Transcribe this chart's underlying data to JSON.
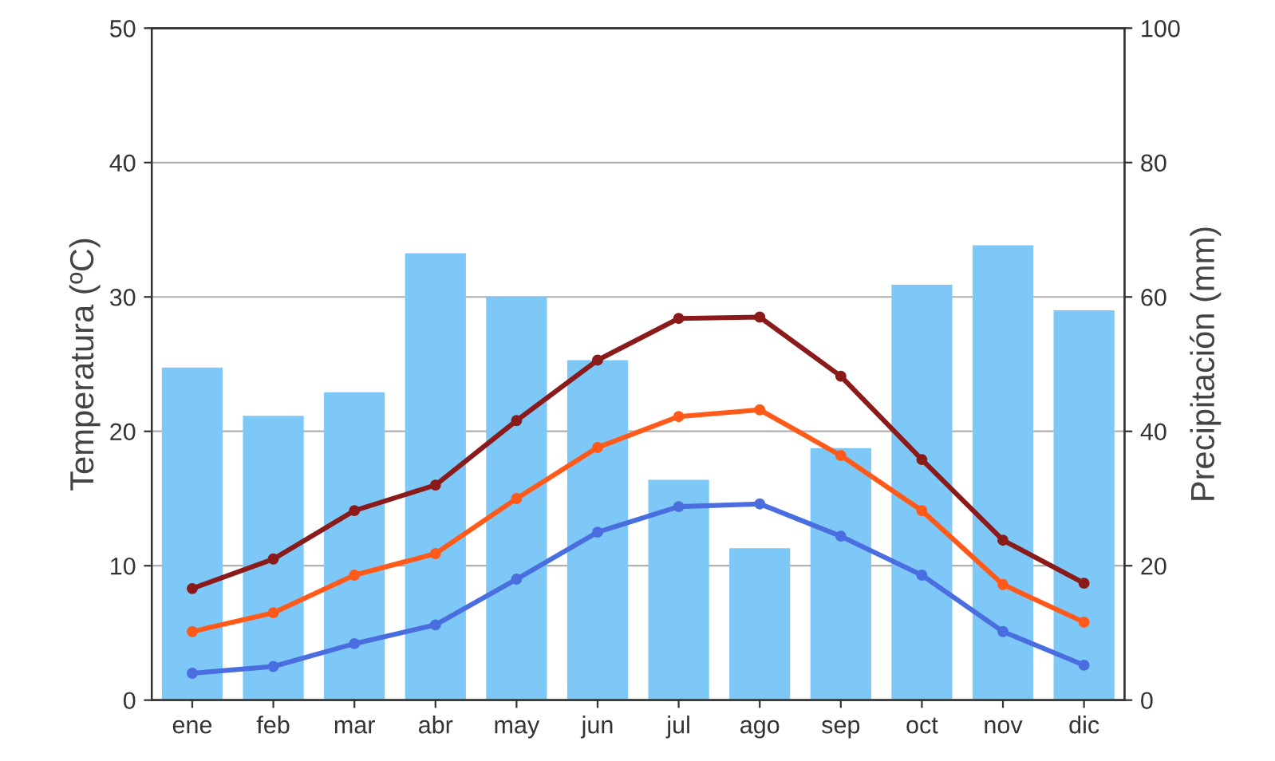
{
  "chart_data": {
    "type": "line",
    "categories": [
      "ene",
      "feb",
      "mar",
      "abr",
      "may",
      "jun",
      "jul",
      "ago",
      "sep",
      "oct",
      "nov",
      "dic"
    ],
    "ylabel": "Temperatura (ºC)",
    "y2label": "Precipitación (mm)",
    "ylim": [
      0,
      50
    ],
    "yticks": [
      0,
      10,
      20,
      30,
      40,
      50
    ],
    "y2lim": [
      0,
      100
    ],
    "y2ticks": [
      0,
      20,
      40,
      60,
      80,
      100
    ],
    "grid": "y",
    "marker": "circle",
    "line_style": "solid",
    "series": [
      {
        "type": "bar",
        "axis": "y2",
        "color": "#7ec8f7",
        "values": [
          49.5,
          42.3,
          45.8,
          66.5,
          60,
          50.6,
          32.8,
          22.6,
          37.5,
          61.8,
          67.7,
          58
        ]
      },
      {
        "color": "#8b1a1a",
        "values": [
          8.3,
          10.5,
          14.1,
          16.0,
          20.8,
          25.3,
          28.4,
          28.5,
          24.1,
          17.9,
          11.9,
          8.7
        ]
      },
      {
        "color": "#ff5a1a",
        "values": [
          5.1,
          6.5,
          9.3,
          10.9,
          15.0,
          18.8,
          21.1,
          21.6,
          18.2,
          14.1,
          8.6,
          5.8
        ]
      },
      {
        "color": "#4a6ee0",
        "values": [
          2.0,
          2.5,
          4.2,
          5.6,
          9.0,
          12.5,
          14.4,
          14.6,
          12.2,
          9.3,
          5.1,
          2.6
        ]
      }
    ]
  }
}
